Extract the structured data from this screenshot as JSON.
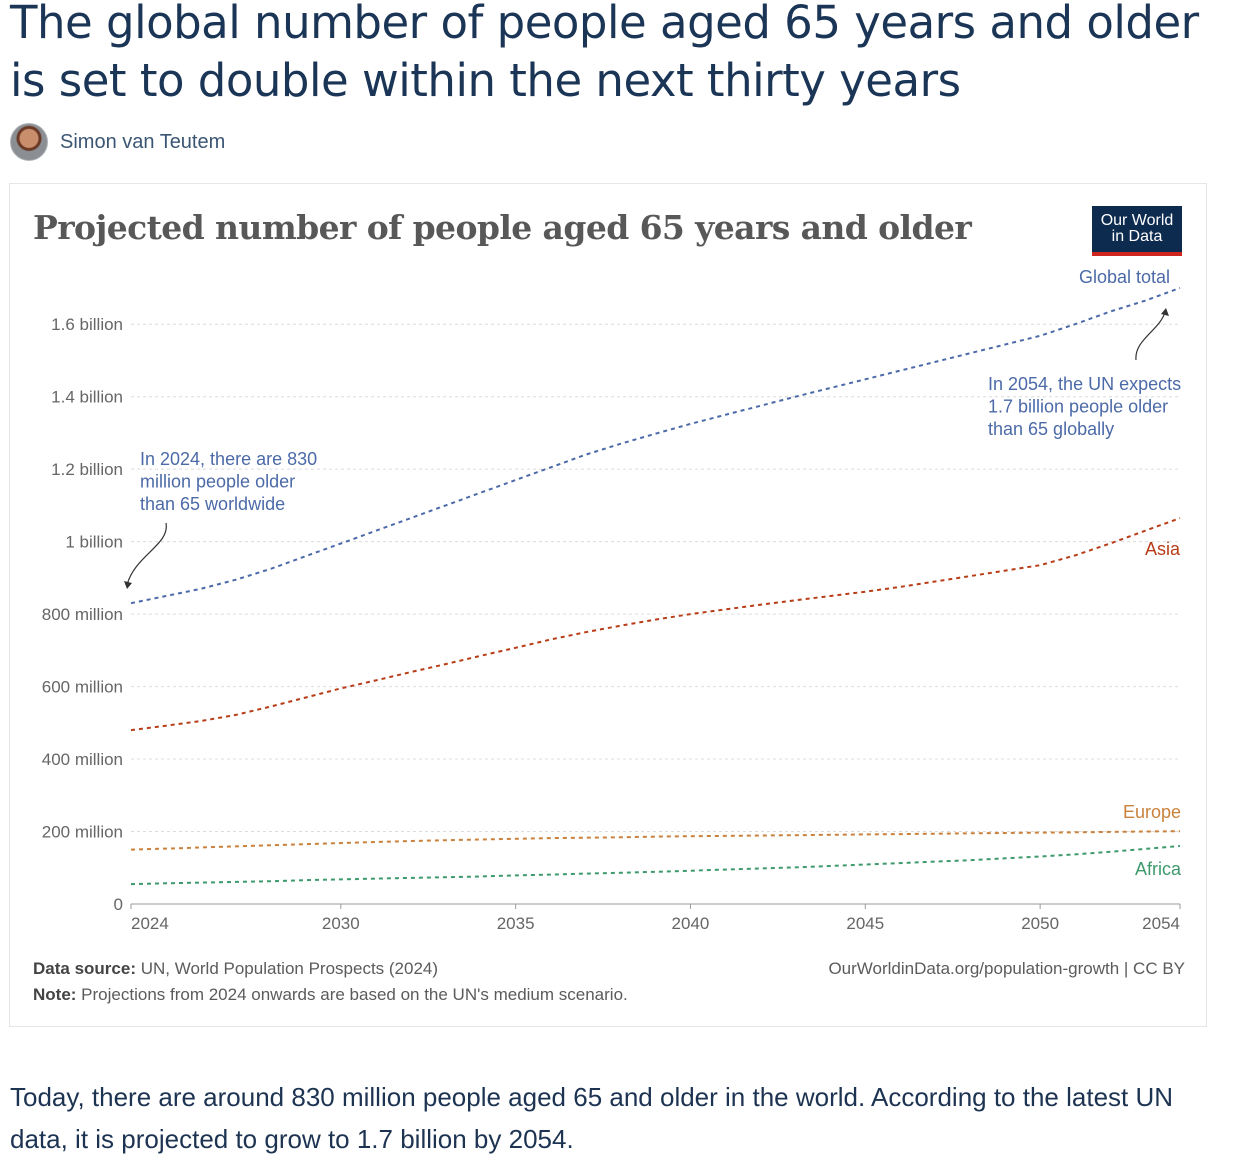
{
  "article": {
    "headline": "The global number of people aged 65 years and older is set to double within the next thirty years",
    "author": "Simon van Teutem",
    "body": "Today, there are around 830 million people aged 65 and older in the world. According to the latest UN data, it is projected to grow to 1.7 billion by 2054."
  },
  "logo": {
    "line1": "Our World",
    "line2": "in Data"
  },
  "footer": {
    "source_label": "Data source:",
    "source_text": " UN, World Population Prospects (2024)",
    "note_label": "Note:",
    "note_text": " Projections from 2024 onwards are based on the UN's medium scenario.",
    "credit": "OurWorldinData.org/population-growth | CC BY"
  },
  "chart_data": {
    "type": "line",
    "title": "Projected number of people aged 65 years and older",
    "line_style": "dashed",
    "grid": true,
    "legend": "inline labels at right end of lines",
    "x": [
      2024,
      2025,
      2026,
      2027,
      2028,
      2029,
      2030,
      2031,
      2032,
      2033,
      2034,
      2035,
      2036,
      2037,
      2038,
      2039,
      2040,
      2041,
      2042,
      2043,
      2044,
      2045,
      2046,
      2047,
      2048,
      2049,
      2050,
      2051,
      2052,
      2053,
      2054
    ],
    "xticks": [
      {
        "value": 2024,
        "label": "2024"
      },
      {
        "value": 2030,
        "label": "2030"
      },
      {
        "value": 2035,
        "label": "2035"
      },
      {
        "value": 2040,
        "label": "2040"
      },
      {
        "value": 2045,
        "label": "2045"
      },
      {
        "value": 2050,
        "label": "2050"
      },
      {
        "value": 2054,
        "label": "2054"
      }
    ],
    "xlim": [
      2024,
      2054
    ],
    "ylim": [
      0,
      1700000000
    ],
    "yticks": [
      {
        "value": 0,
        "label": "0"
      },
      {
        "value": 200000000,
        "label": "200 million"
      },
      {
        "value": 400000000,
        "label": "400 million"
      },
      {
        "value": 600000000,
        "label": "600 million"
      },
      {
        "value": 800000000,
        "label": "800 million"
      },
      {
        "value": 1000000000,
        "label": "1 billion"
      },
      {
        "value": 1200000000,
        "label": "1.2 billion"
      },
      {
        "value": 1400000000,
        "label": "1.4 billion"
      },
      {
        "value": 1600000000,
        "label": "1.6 billion"
      }
    ],
    "series": [
      {
        "name": "Global total",
        "color": "#4c6aa8",
        "values": [
          830000000,
          850000000,
          870000000,
          895000000,
          925000000,
          960000000,
          995000000,
          1030000000,
          1065000000,
          1100000000,
          1135000000,
          1170000000,
          1205000000,
          1240000000,
          1270000000,
          1298000000,
          1325000000,
          1350000000,
          1375000000,
          1400000000,
          1424000000,
          1448000000,
          1472000000,
          1496000000,
          1520000000,
          1544000000,
          1568000000,
          1600000000,
          1635000000,
          1665000000,
          1700000000
        ]
      },
      {
        "name": "Asia",
        "color": "#b83c17",
        "values": [
          480000000,
          492000000,
          505000000,
          522000000,
          545000000,
          570000000,
          595000000,
          617000000,
          640000000,
          662000000,
          685000000,
          707000000,
          730000000,
          750000000,
          768000000,
          785000000,
          800000000,
          813000000,
          826000000,
          838000000,
          850000000,
          862000000,
          875000000,
          890000000,
          905000000,
          920000000,
          935000000,
          962000000,
          995000000,
          1030000000,
          1065000000
        ]
      },
      {
        "name": "Europe",
        "color": "#c9813c",
        "values": [
          150000000,
          153000000,
          156000000,
          159000000,
          162000000,
          165000000,
          168000000,
          171000000,
          174000000,
          176000000,
          178000000,
          180000000,
          182000000,
          183000000,
          184000000,
          186000000,
          187000000,
          188000000,
          189000000,
          190000000,
          191000000,
          192000000,
          193000000,
          194000000,
          195000000,
          196000000,
          197000000,
          198000000,
          199000000,
          200000000,
          201000000
        ]
      },
      {
        "name": "Africa",
        "color": "#3d9a6c",
        "values": [
          55000000,
          57000000,
          59000000,
          61000000,
          63000000,
          66000000,
          68000000,
          70000000,
          72000000,
          74000000,
          76000000,
          79000000,
          81000000,
          84000000,
          86000000,
          89000000,
          92000000,
          95000000,
          98000000,
          101000000,
          105000000,
          109000000,
          113000000,
          117000000,
          121000000,
          126000000,
          131000000,
          137000000,
          144000000,
          152000000,
          160000000
        ]
      }
    ],
    "annotations": [
      {
        "text_lines": [
          "In 2024, there are 830",
          "million people older",
          "than 65 worldwide"
        ],
        "color": "#4c6aa8",
        "points_to": {
          "x": 2024,
          "y": 830000000
        }
      },
      {
        "text_lines": [
          "In 2054, the UN expects",
          "1.7 billion people older",
          "than 65 globally"
        ],
        "color": "#4c6aa8",
        "points_to": {
          "x": 2054,
          "y": 1700000000
        }
      }
    ]
  }
}
